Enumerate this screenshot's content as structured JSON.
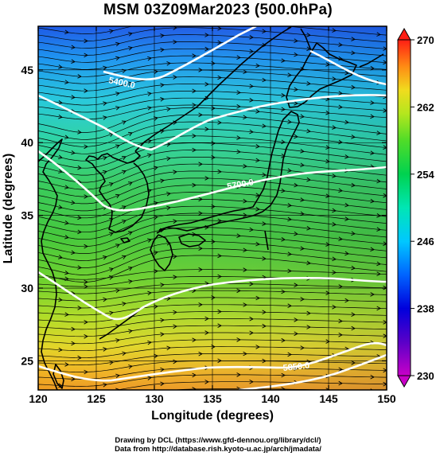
{
  "title": "MSM 03Z09Mar2023 (500.0hPa)",
  "map": {
    "lon_range": [
      120,
      150
    ],
    "lat_range": [
      23,
      48
    ],
    "x_ticks": [
      {
        "v": 120,
        "label": "120"
      },
      {
        "v": 125,
        "label": "125"
      },
      {
        "v": 130,
        "label": "130"
      },
      {
        "v": 135,
        "label": "135"
      },
      {
        "v": 140,
        "label": "140"
      },
      {
        "v": 145,
        "label": "145"
      },
      {
        "v": 150,
        "label": "150"
      }
    ],
    "y_ticks": [
      {
        "v": 25,
        "label": "25"
      },
      {
        "v": 30,
        "label": "30"
      },
      {
        "v": 35,
        "label": "35"
      },
      {
        "v": 40,
        "label": "40"
      },
      {
        "v": 45,
        "label": "45"
      }
    ],
    "x_axis_title": "Longitude (degrees)",
    "y_axis_title": "Latitude  (degrees)",
    "height_contour_labels": [
      "5400.0",
      "5700.0"
    ],
    "extra_contour_labels": [
      "5850.0"
    ]
  },
  "colorbar": {
    "min": 230,
    "max": 270,
    "ticks": [
      {
        "v": 230,
        "label": "230"
      },
      {
        "v": 238,
        "label": "238"
      },
      {
        "v": 246,
        "label": "246"
      },
      {
        "v": 254,
        "label": "254"
      },
      {
        "v": 262,
        "label": "262"
      },
      {
        "v": 270,
        "label": "270"
      }
    ]
  },
  "credits": {
    "line1": "Drawing by DCL (https://www.gfd-dennou.org/library/dcl/)",
    "line2": "Data from http://database.rish.kyoto-u.ac.jp/arch/jmadata/"
  }
}
